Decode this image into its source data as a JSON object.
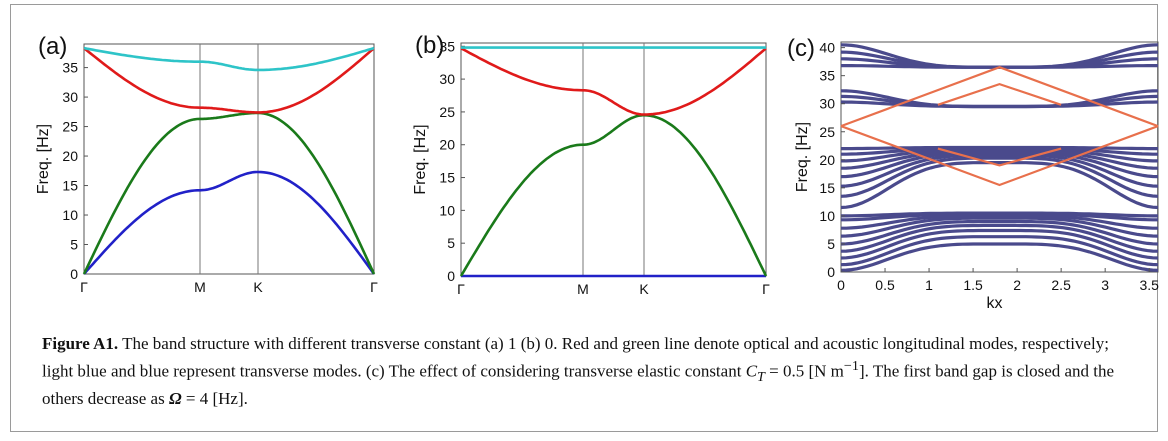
{
  "chart_data": [
    {
      "panel_label": "(a)",
      "type": "line",
      "ylabel": "Freq. [Hz]",
      "xlabel": "",
      "ylim": [
        0,
        39
      ],
      "yticks": [
        0,
        5,
        10,
        15,
        20,
        25,
        30,
        35
      ],
      "xtick_labels": [
        "Γ",
        "M",
        "K",
        "Γ"
      ],
      "x": [
        0,
        1,
        1.5,
        2.5
      ],
      "series": [
        {
          "color": "#2121c8",
          "values": [
            0,
            14.2,
            17.3,
            0
          ]
        },
        {
          "color": "#1a7a1a",
          "values": [
            0,
            26.3,
            27.3,
            0
          ]
        },
        {
          "color": "#e01a1a",
          "values": [
            38.3,
            28.2,
            27.4,
            38.3
          ]
        },
        {
          "color": "#2ec4c8",
          "values": [
            38.3,
            36.0,
            34.6,
            38.3
          ]
        }
      ]
    },
    {
      "panel_label": "(b)",
      "type": "line",
      "ylabel": "Freq. [Hz]",
      "xlabel": "",
      "ylim": [
        0,
        35.5
      ],
      "yticks": [
        0,
        5,
        10,
        15,
        20,
        25,
        30,
        35
      ],
      "xtick_labels": [
        "Γ",
        "M",
        "K",
        "Γ"
      ],
      "x": [
        0,
        1,
        1.5,
        2.5
      ],
      "series": [
        {
          "color": "#2121c8",
          "values": [
            0,
            0,
            0,
            0
          ]
        },
        {
          "color": "#1a7a1a",
          "values": [
            0,
            20.0,
            24.5,
            0
          ]
        },
        {
          "color": "#e01a1a",
          "values": [
            34.7,
            28.3,
            24.6,
            34.7
          ]
        },
        {
          "color": "#2ec4c8",
          "values": [
            34.8,
            34.8,
            34.8,
            34.8
          ]
        }
      ]
    },
    {
      "panel_label": "(c)",
      "type": "line",
      "ylabel": "Freq. [Hz]",
      "xlabel": "kx",
      "ylim": [
        0,
        41
      ],
      "xlim": [
        0,
        3.6
      ],
      "yticks": [
        0,
        5,
        10,
        15,
        20,
        25,
        30,
        35,
        40
      ],
      "xticks": [
        0,
        0.5,
        1,
        1.5,
        2,
        2.5,
        3,
        3.5
      ],
      "xtick_labels": [
        "0",
        "0.5",
        "1",
        "1.5",
        "2",
        "2.5",
        "3",
        "3.5"
      ],
      "colors": {
        "bulk": "#4a4a8c",
        "edge": "#e8704c"
      },
      "bands": [
        {
          "y_edge": 40.5,
          "y_mid": 36.5
        },
        {
          "y_edge": 39.2,
          "y_mid": 36.5
        },
        {
          "y_edge": 38.0,
          "y_mid": 36.5
        },
        {
          "y_edge": 36.8,
          "y_mid": 36.5
        },
        {
          "y_edge": 32.3,
          "y_mid": 29.5
        },
        {
          "y_edge": 31.3,
          "y_mid": 29.5
        },
        {
          "y_edge": 30.3,
          "y_mid": 29.5
        },
        {
          "y_edge": 22.0,
          "y_mid": 22.2
        },
        {
          "y_edge": 21.0,
          "y_mid": 22.0
        },
        {
          "y_edge": 19.8,
          "y_mid": 21.8
        },
        {
          "y_edge": 18.5,
          "y_mid": 21.5
        },
        {
          "y_edge": 17.0,
          "y_mid": 21.2
        },
        {
          "y_edge": 15.3,
          "y_mid": 20.8
        },
        {
          "y_edge": 13.5,
          "y_mid": 20.3
        },
        {
          "y_edge": 11.5,
          "y_mid": 19.5
        },
        {
          "y_edge": 10.0,
          "y_mid": 10.5
        },
        {
          "y_edge": 9.3,
          "y_mid": 10.3
        },
        {
          "y_edge": 7.8,
          "y_mid": 10.0
        },
        {
          "y_edge": 6.4,
          "y_mid": 9.6
        },
        {
          "y_edge": 5.0,
          "y_mid": 9.0
        },
        {
          "y_edge": 3.7,
          "y_mid": 8.3
        },
        {
          "y_edge": 2.5,
          "y_mid": 7.4
        },
        {
          "y_edge": 1.3,
          "y_mid": 6.3
        },
        {
          "y_edge": 0.3,
          "y_mid": 5.0
        }
      ],
      "edge_states": [
        {
          "x": [
            0,
            1.8,
            3.6
          ],
          "y": [
            26.0,
            36.5,
            26.0
          ]
        },
        {
          "x": [
            0,
            1.8,
            3.6
          ],
          "y": [
            26.0,
            15.5,
            26.0
          ]
        },
        {
          "x": [
            1.1,
            1.8,
            2.5
          ],
          "y": [
            22.0,
            19.0,
            22.0
          ]
        },
        {
          "x": [
            1.1,
            1.8,
            2.5
          ],
          "y": [
            29.8,
            33.5,
            29.8
          ]
        }
      ]
    }
  ],
  "caption": {
    "label": "Figure A1.",
    "text": " The band structure with different transverse constant (a) 1 (b) 0. Red and green line denote optical and acoustic longitudinal modes, respectively; light blue and blue represent transverse modes. (c) The effect of considering transverse elastic constant ",
    "ct_symbol": "C",
    "ct_sub": "T",
    "ct_value": " = 0.5 [N m",
    "ct_exp": "−1",
    "ct_after": "]. The first band gap is closed and the others decrease as ",
    "omega_symbol": "Ω",
    "omega_value": " = 4 [Hz]."
  }
}
